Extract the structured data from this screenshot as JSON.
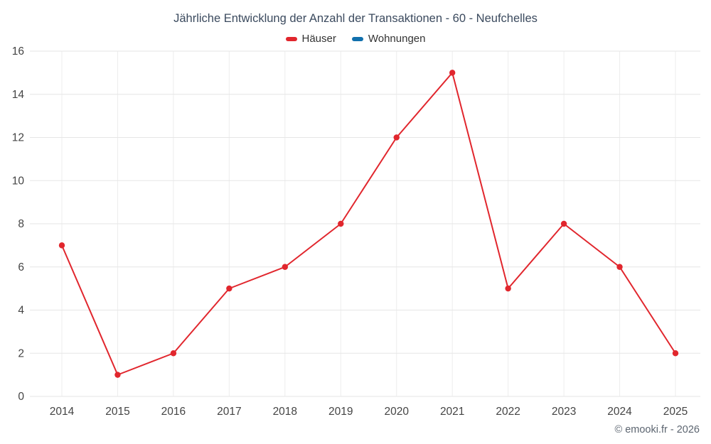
{
  "title": "Jährliche Entwicklung der Anzahl der Transaktionen - 60 - Neufchelles",
  "footer": "© emooki.fr - 2026",
  "chart_data": {
    "type": "line",
    "title": "Jährliche Entwicklung der Anzahl der Transaktionen - 60 - Neufchelles",
    "categories": [
      "2014",
      "2015",
      "2016",
      "2017",
      "2018",
      "2019",
      "2020",
      "2021",
      "2022",
      "2023",
      "2024",
      "2025"
    ],
    "series": [
      {
        "name": "Häuser",
        "color": "#e1262d",
        "values": [
          7,
          1,
          2,
          5,
          6,
          8,
          12,
          15,
          5,
          8,
          6,
          2
        ]
      },
      {
        "name": "Wohnungen",
        "color": "#1170ad",
        "values": []
      }
    ],
    "xlabel": "",
    "ylabel": "",
    "ylim": [
      0,
      16
    ],
    "ytick_step": 2,
    "grid": true,
    "grid_color": "#e6e6e6",
    "vgrid_color": "#ededed",
    "axis_label_color": "#444444",
    "legend_position": "top"
  }
}
